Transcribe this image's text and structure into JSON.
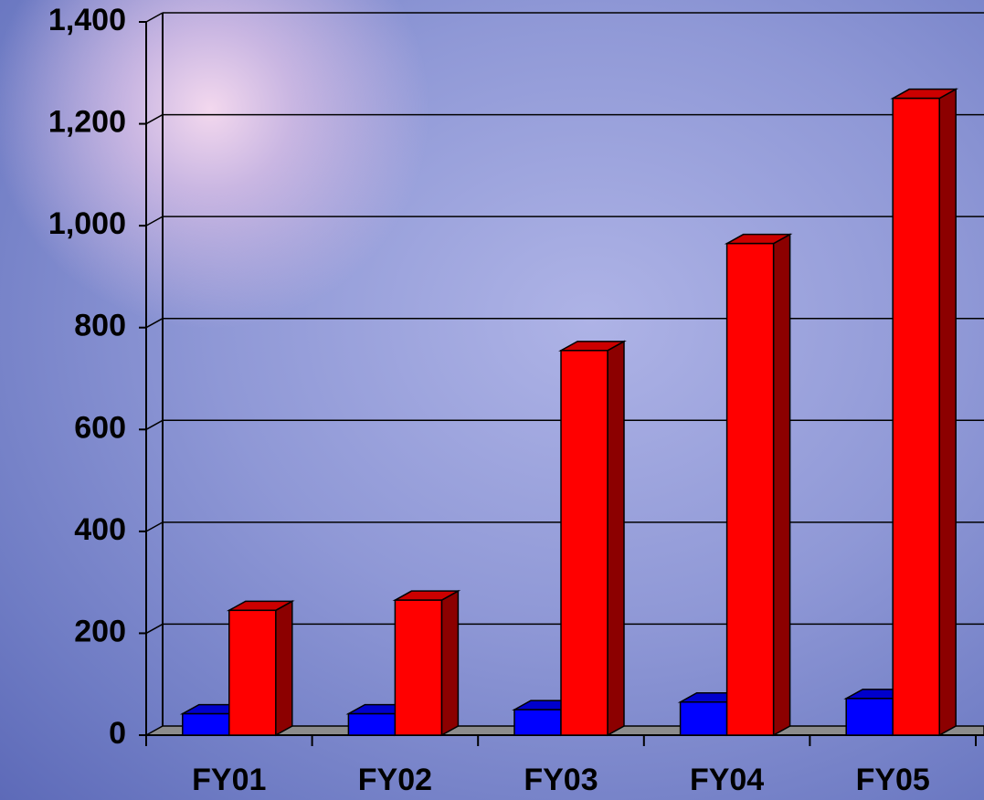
{
  "chart_data": {
    "type": "bar3d",
    "categories": [
      "FY01",
      "FY02",
      "FY03",
      "FY04",
      "FY05"
    ],
    "series": [
      {
        "color": "#0000ff",
        "values": [
          42,
          42,
          50,
          65,
          72
        ]
      },
      {
        "color": "#ff0000",
        "values": [
          245,
          265,
          755,
          965,
          1250
        ]
      }
    ],
    "ylim": [
      0,
      1400
    ],
    "yticks": [
      0,
      200,
      400,
      600,
      800,
      {
        "value": 1000,
        "label": "1,000"
      },
      {
        "value": 1200,
        "label": "1,200"
      },
      {
        "value": 1400,
        "label": "1,400"
      }
    ],
    "grid": true
  }
}
